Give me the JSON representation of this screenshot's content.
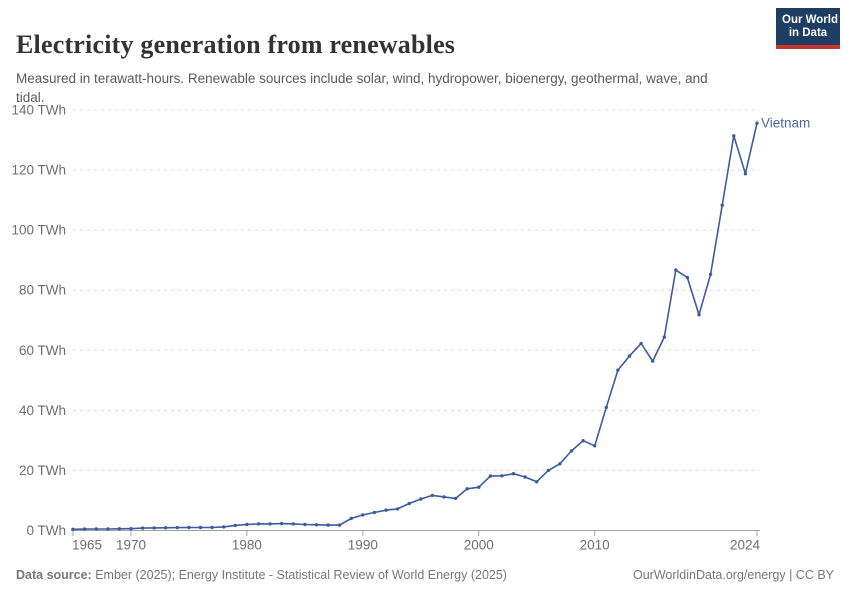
{
  "header": {
    "title": "Electricity generation from renewables",
    "subtitle": "Measured in terawatt-hours. Renewable sources include solar, wind, hydropower, bioenergy, geothermal, wave, and tidal.",
    "logo": {
      "line1": "Our World",
      "line2": "in Data"
    }
  },
  "footer": {
    "source_label": "Data source:",
    "source_text": " Ember (2025); Energy Institute - Statistical Review of World Energy (2025)",
    "credit": "OurWorldinData.org/energy | CC BY"
  },
  "colors": {
    "line": "#3d5c9e",
    "series_label": "#4c69a5",
    "grid": "#dbdbdb",
    "axis": "#a3a3a3",
    "axis_text": "#6e6e6e",
    "logo_bg": "#1d3d63",
    "logo_bar": "#c4342c"
  },
  "chart_data": {
    "type": "line",
    "title": "Electricity generation from renewables",
    "unit": "TWh",
    "xlabel": "",
    "ylabel": "TWh",
    "ylim": [
      0,
      140
    ],
    "yticks": [
      0,
      20,
      40,
      60,
      80,
      100,
      120,
      140
    ],
    "ytick_format": " TWh",
    "xlim": [
      1965,
      2024
    ],
    "xticks": [
      1965,
      1970,
      1980,
      1990,
      2000,
      2010,
      2024
    ],
    "grid": "horizontal-dashed",
    "legend_position": "end-of-line",
    "series": [
      {
        "name": "Vietnam",
        "x": [
          1965,
          1966,
          1967,
          1968,
          1969,
          1970,
          1971,
          1972,
          1973,
          1974,
          1975,
          1976,
          1977,
          1978,
          1979,
          1980,
          1981,
          1982,
          1983,
          1984,
          1985,
          1986,
          1987,
          1988,
          1989,
          1990,
          1991,
          1992,
          1993,
          1994,
          1995,
          1996,
          1997,
          1998,
          1999,
          2000,
          2001,
          2002,
          2003,
          2004,
          2005,
          2006,
          2007,
          2008,
          2009,
          2010,
          2011,
          2012,
          2013,
          2014,
          2015,
          2016,
          2017,
          2018,
          2019,
          2020,
          2021,
          2022,
          2023,
          2024
        ],
        "values": [
          0.4,
          0.45,
          0.5,
          0.5,
          0.55,
          0.6,
          0.8,
          0.85,
          0.9,
          0.95,
          1.0,
          1.0,
          1.0,
          1.2,
          1.7,
          2.0,
          2.2,
          2.2,
          2.3,
          2.2,
          2.0,
          1.9,
          1.8,
          1.8,
          4.0,
          5.2,
          6.0,
          6.8,
          7.2,
          9.0,
          10.5,
          11.7,
          11.2,
          10.7,
          13.9,
          14.4,
          18.1,
          18.2,
          18.9,
          17.8,
          16.2,
          20.0,
          22.2,
          26.5,
          29.9,
          28.2,
          41.0,
          53.4,
          58.1,
          62.3,
          56.4,
          64.4,
          86.7,
          84.2,
          71.8,
          85.3,
          108.3,
          131.4,
          118.8,
          135.6
        ]
      }
    ]
  }
}
